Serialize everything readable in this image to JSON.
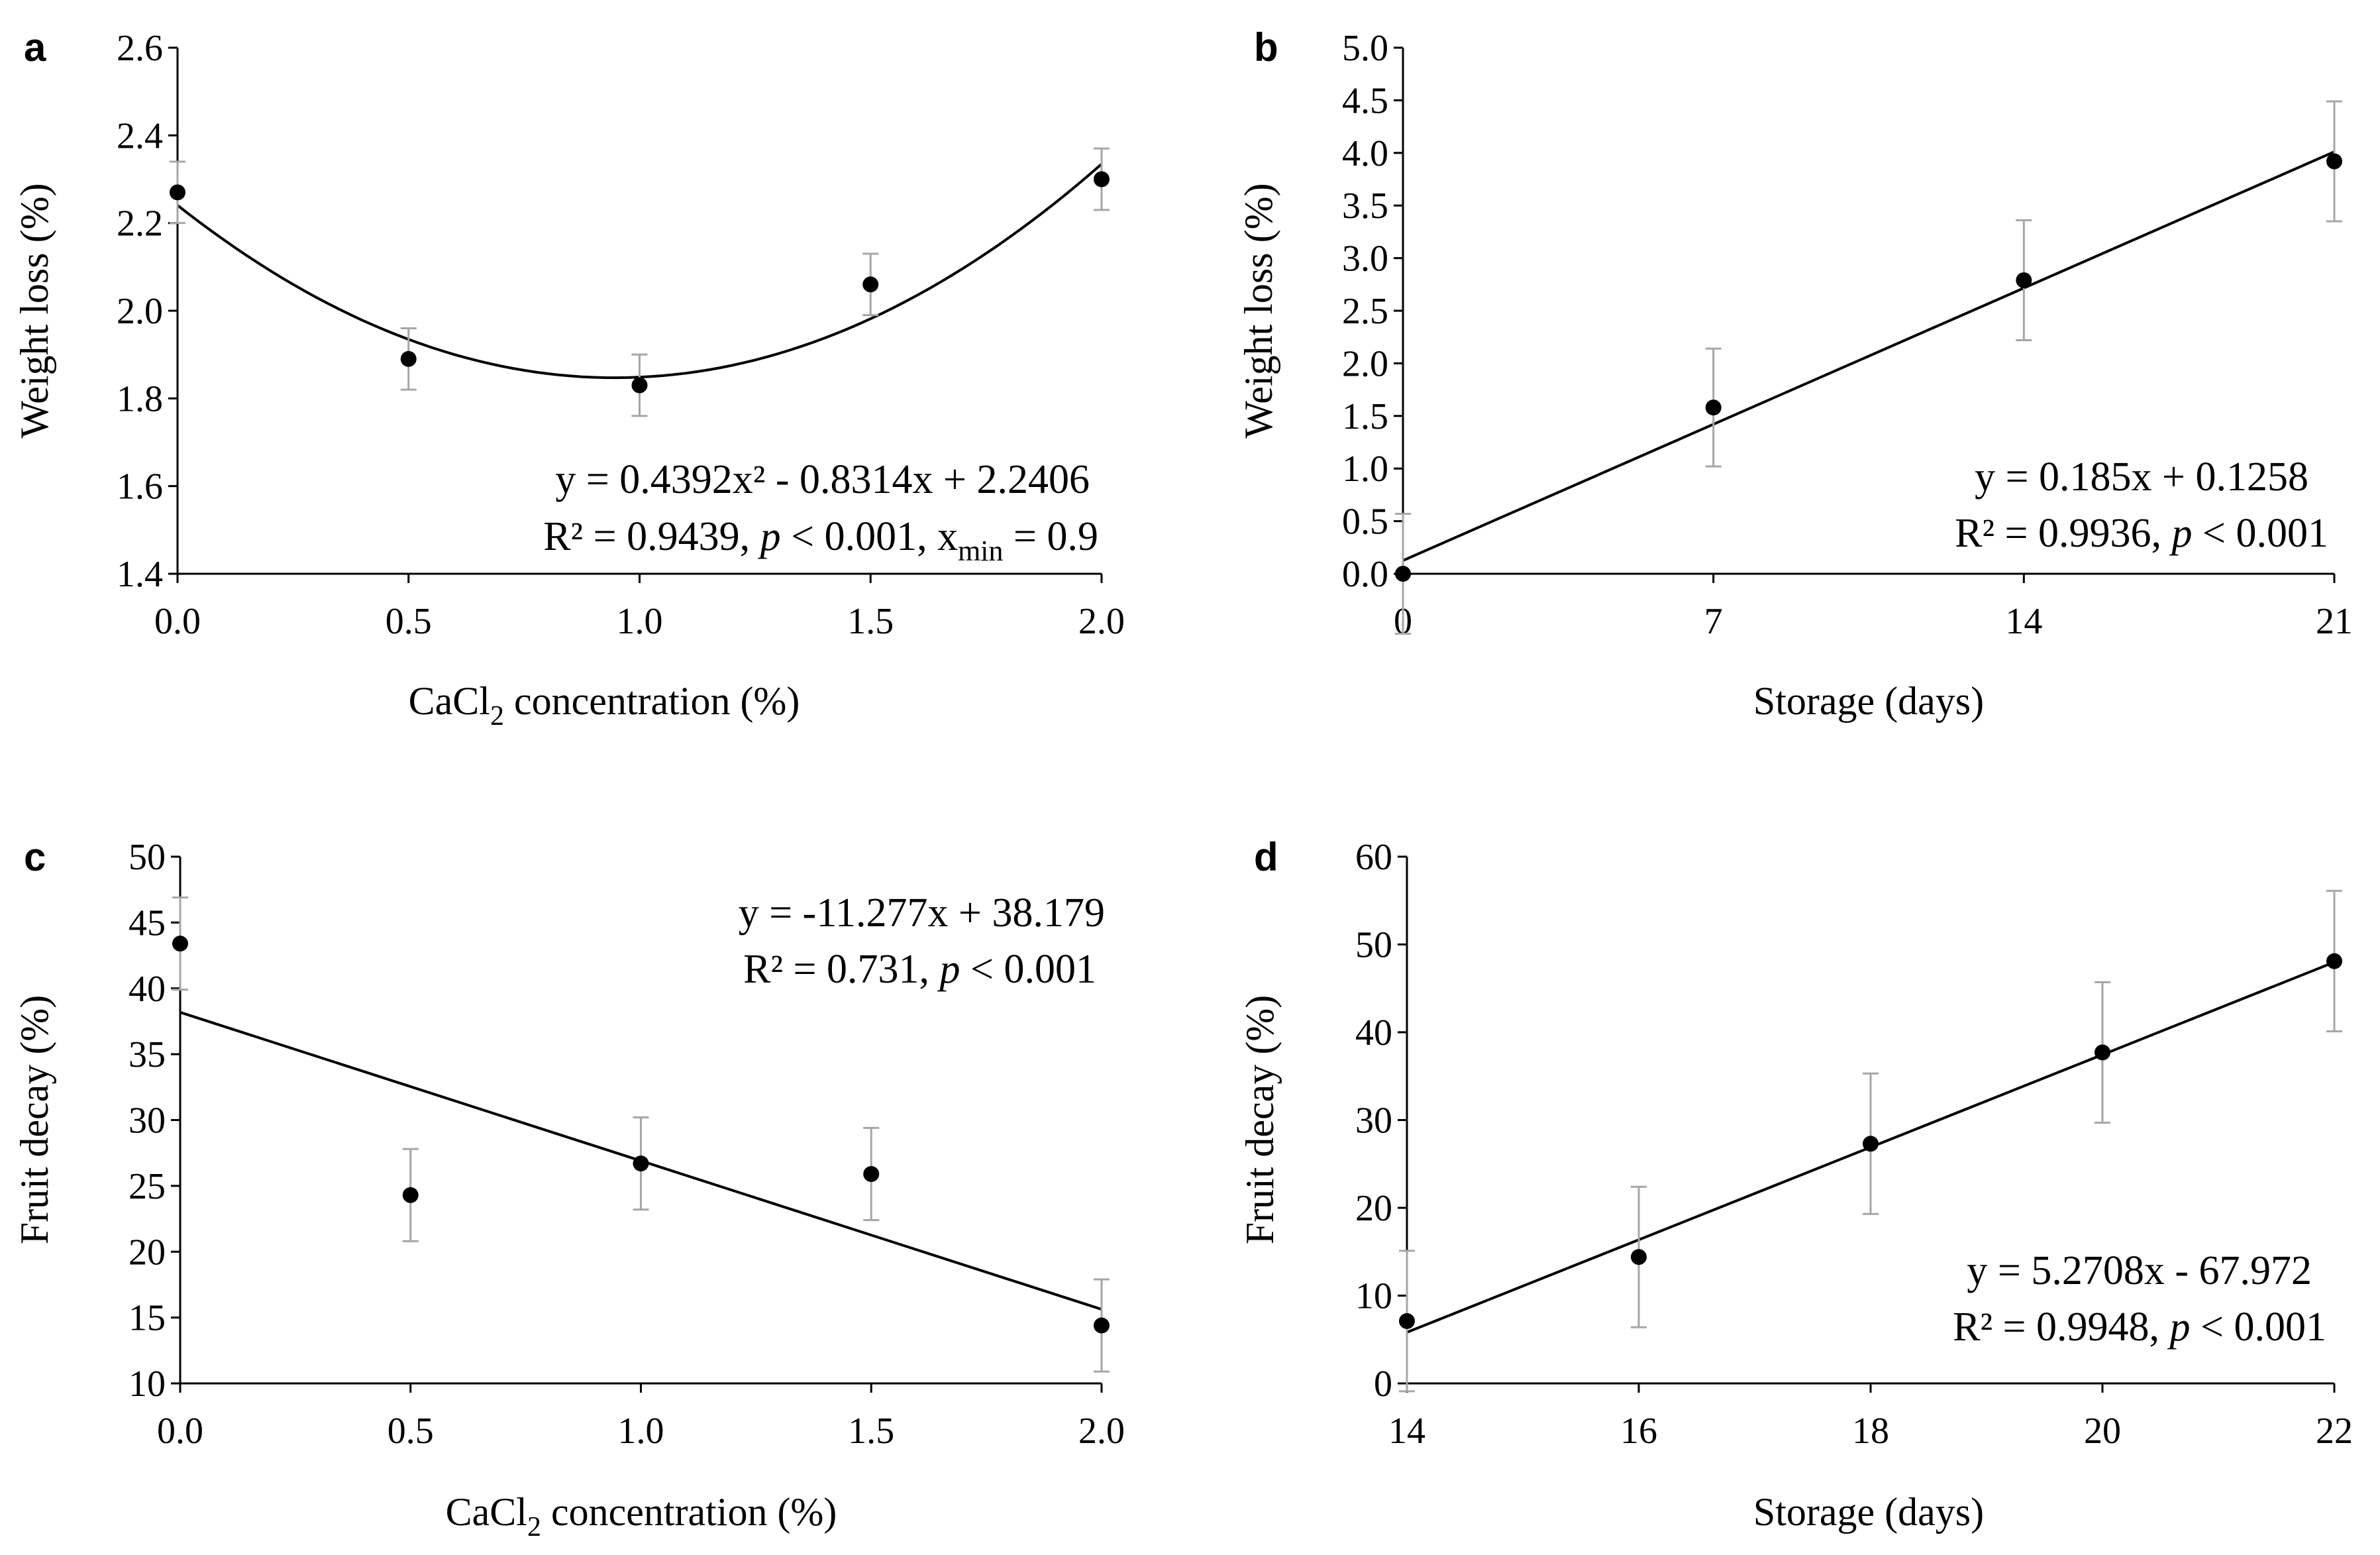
{
  "chart_data": [
    {
      "panel": "a",
      "type": "scatter",
      "x": [
        0.0,
        0.5,
        1.0,
        1.5,
        2.0
      ],
      "y": [
        2.27,
        1.89,
        1.83,
        2.06,
        2.3
      ],
      "error": [
        0.07,
        0.07,
        0.07,
        0.07,
        0.07
      ],
      "xticks": [
        "0.0",
        "0.5",
        "1.0",
        "1.5",
        "2.0"
      ],
      "yticks": [
        "1.4",
        "1.6",
        "1.8",
        "2.0",
        "2.2",
        "2.4",
        "2.6"
      ],
      "xlim": [
        0,
        2
      ],
      "ylim": [
        1.4,
        2.6
      ],
      "xlabel_main": "CaCl",
      "xlabel_sub": "2",
      "xlabel_rest": " concentration (%)",
      "ylabel": "Weight loss (%)",
      "fit": {
        "kind": "quadratic",
        "coef": [
          0.4392,
          -0.8314,
          2.2406
        ]
      },
      "equation_line1": "y = 0.4392x² - 0.8314x + 2.2406",
      "eq2_part1": "R² = 0.9439, ",
      "eq2_p": "p",
      "eq2_part2": " < 0.001, x",
      "eq2_sub": "min",
      "eq2_part3": " = 0.9"
    },
    {
      "panel": "b",
      "type": "scatter",
      "x": [
        0,
        7,
        14,
        21
      ],
      "y": [
        0.0,
        1.58,
        2.79,
        3.92
      ],
      "error": [
        0.57,
        0.56,
        0.57,
        0.57
      ],
      "xticks": [
        "0",
        "7",
        "14",
        "21"
      ],
      "yticks": [
        "0.0",
        "0.5",
        "1.0",
        "1.5",
        "2.0",
        "2.5",
        "3.0",
        "3.5",
        "4.0",
        "4.5",
        "5.0"
      ],
      "xlim": [
        0,
        21
      ],
      "ylim": [
        0,
        5
      ],
      "xlabel": "Storage (days)",
      "ylabel": "Weight loss (%)",
      "fit": {
        "kind": "linear",
        "coef": [
          0.185,
          0.1258
        ]
      },
      "equation_line1": "y = 0.185x + 0.1258",
      "eq2_part1": "R² = 0.9936, ",
      "eq2_p": "p",
      "eq2_part2": " < 0.001"
    },
    {
      "panel": "c",
      "type": "scatter",
      "x": [
        0.0,
        0.5,
        1.0,
        1.5,
        2.0
      ],
      "y": [
        43.4,
        24.3,
        26.7,
        25.9,
        14.4
      ],
      "error": [
        3.5,
        3.5,
        3.5,
        3.5,
        3.5
      ],
      "xticks": [
        "0.0",
        "0.5",
        "1.0",
        "1.5",
        "2.0"
      ],
      "yticks": [
        "10",
        "15",
        "20",
        "25",
        "30",
        "35",
        "40",
        "45",
        "50"
      ],
      "xlim": [
        0,
        2
      ],
      "ylim": [
        10,
        50
      ],
      "xlabel_main": "CaCl",
      "xlabel_sub": "2",
      "xlabel_rest": " concentration (%)",
      "ylabel": "Fruit decay (%)",
      "fit": {
        "kind": "linear",
        "coef": [
          -11.277,
          38.179
        ]
      },
      "equation_line1": "y = -11.277x + 38.179",
      "eq2_part1": "R² = 0.731, ",
      "eq2_p": "p",
      "eq2_part2": " < 0.001"
    },
    {
      "panel": "d",
      "type": "scatter",
      "x": [
        14,
        16,
        18,
        20,
        22
      ],
      "y": [
        7.1,
        14.4,
        27.3,
        37.7,
        48.1
      ],
      "error": [
        8.0,
        8.0,
        8.0,
        8.0,
        8.0
      ],
      "xticks": [
        "14",
        "16",
        "18",
        "20",
        "22"
      ],
      "yticks": [
        "0",
        "10",
        "20",
        "30",
        "40",
        "50",
        "60"
      ],
      "xlim": [
        14,
        22
      ],
      "ylim": [
        0,
        60
      ],
      "xlabel": "Storage (days)",
      "ylabel": "Fruit decay (%)",
      "fit": {
        "kind": "linear",
        "coef": [
          5.2708,
          -67.972
        ]
      },
      "equation_line1": "y = 5.2708x - 67.972",
      "eq2_part1": "R² = 0.9948, ",
      "eq2_p": "p",
      "eq2_part2": " < 0.001"
    }
  ]
}
